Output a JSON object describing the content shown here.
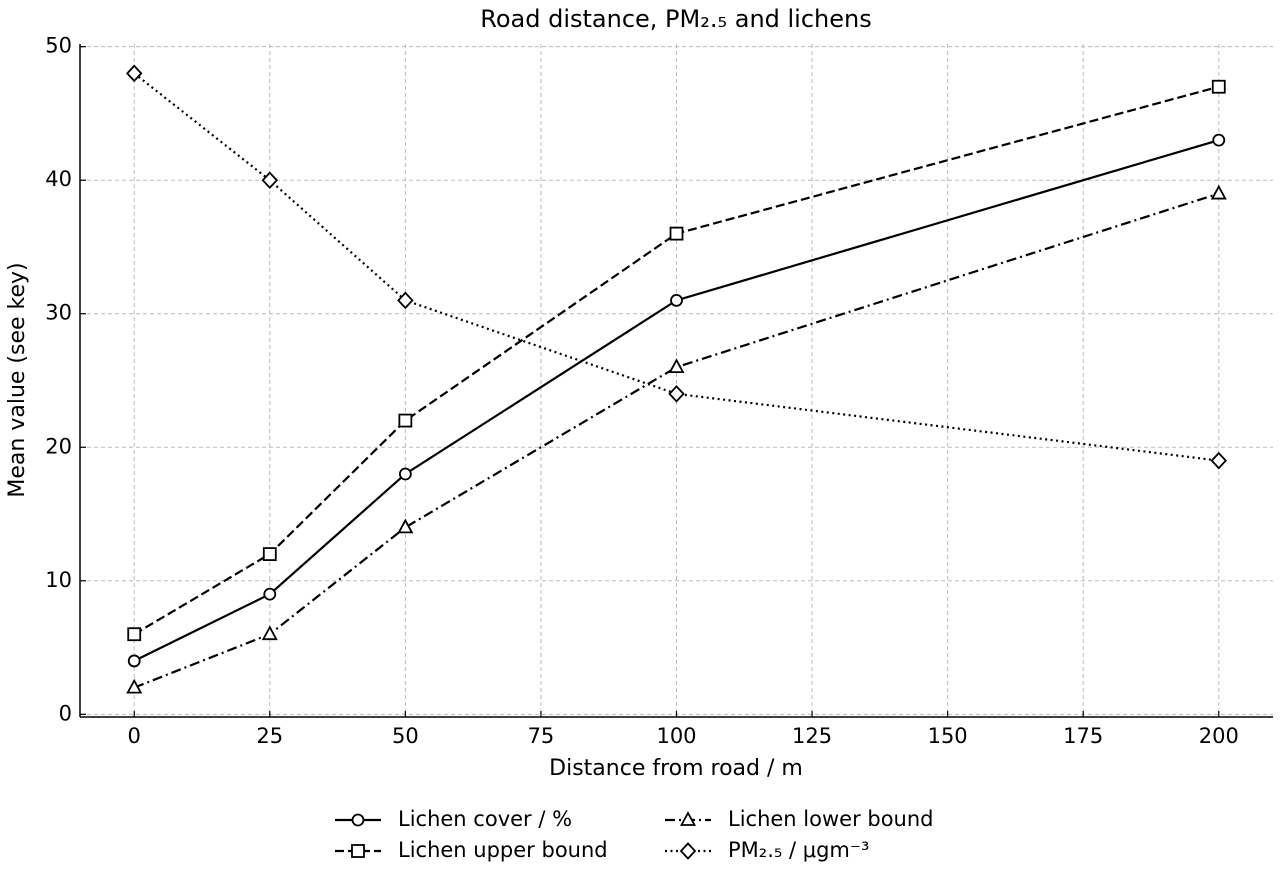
{
  "chart_data": {
    "type": "line",
    "title": "Road distance, PM₂.₅ and lichens",
    "x_label": "Distance from road / m",
    "y_label": "Mean value (see key)",
    "x": [
      0,
      25,
      50,
      100,
      200
    ],
    "series": [
      {
        "name": "Lichen cover / %",
        "color": "#000000",
        "dash": "solid",
        "marker": "circle",
        "values": [
          4,
          9,
          18,
          31,
          43
        ]
      },
      {
        "name": "Lichen upper bound",
        "color": "#000000",
        "dash": "dashed",
        "marker": "square",
        "values": [
          6,
          12,
          22,
          36,
          47
        ]
      },
      {
        "name": "Lichen lower bound",
        "color": "#000000",
        "dash": "dashdot",
        "marker": "triangle",
        "values": [
          2,
          6,
          14,
          26,
          39
        ]
      },
      {
        "name": "PM₂.₅ / μgm⁻³",
        "color": "#000000",
        "dash": "dotted",
        "marker": "diamond",
        "values": [
          48,
          40,
          31,
          24,
          19
        ]
      }
    ],
    "xlim": [
      -10,
      210
    ],
    "xticks": [
      0,
      25,
      50,
      75,
      100,
      125,
      150,
      175,
      200
    ],
    "ylim": [
      -0.2,
      50.2
    ],
    "yticks": [
      0,
      10,
      20,
      30,
      40,
      50
    ],
    "grid": true,
    "legend": "bottom"
  }
}
